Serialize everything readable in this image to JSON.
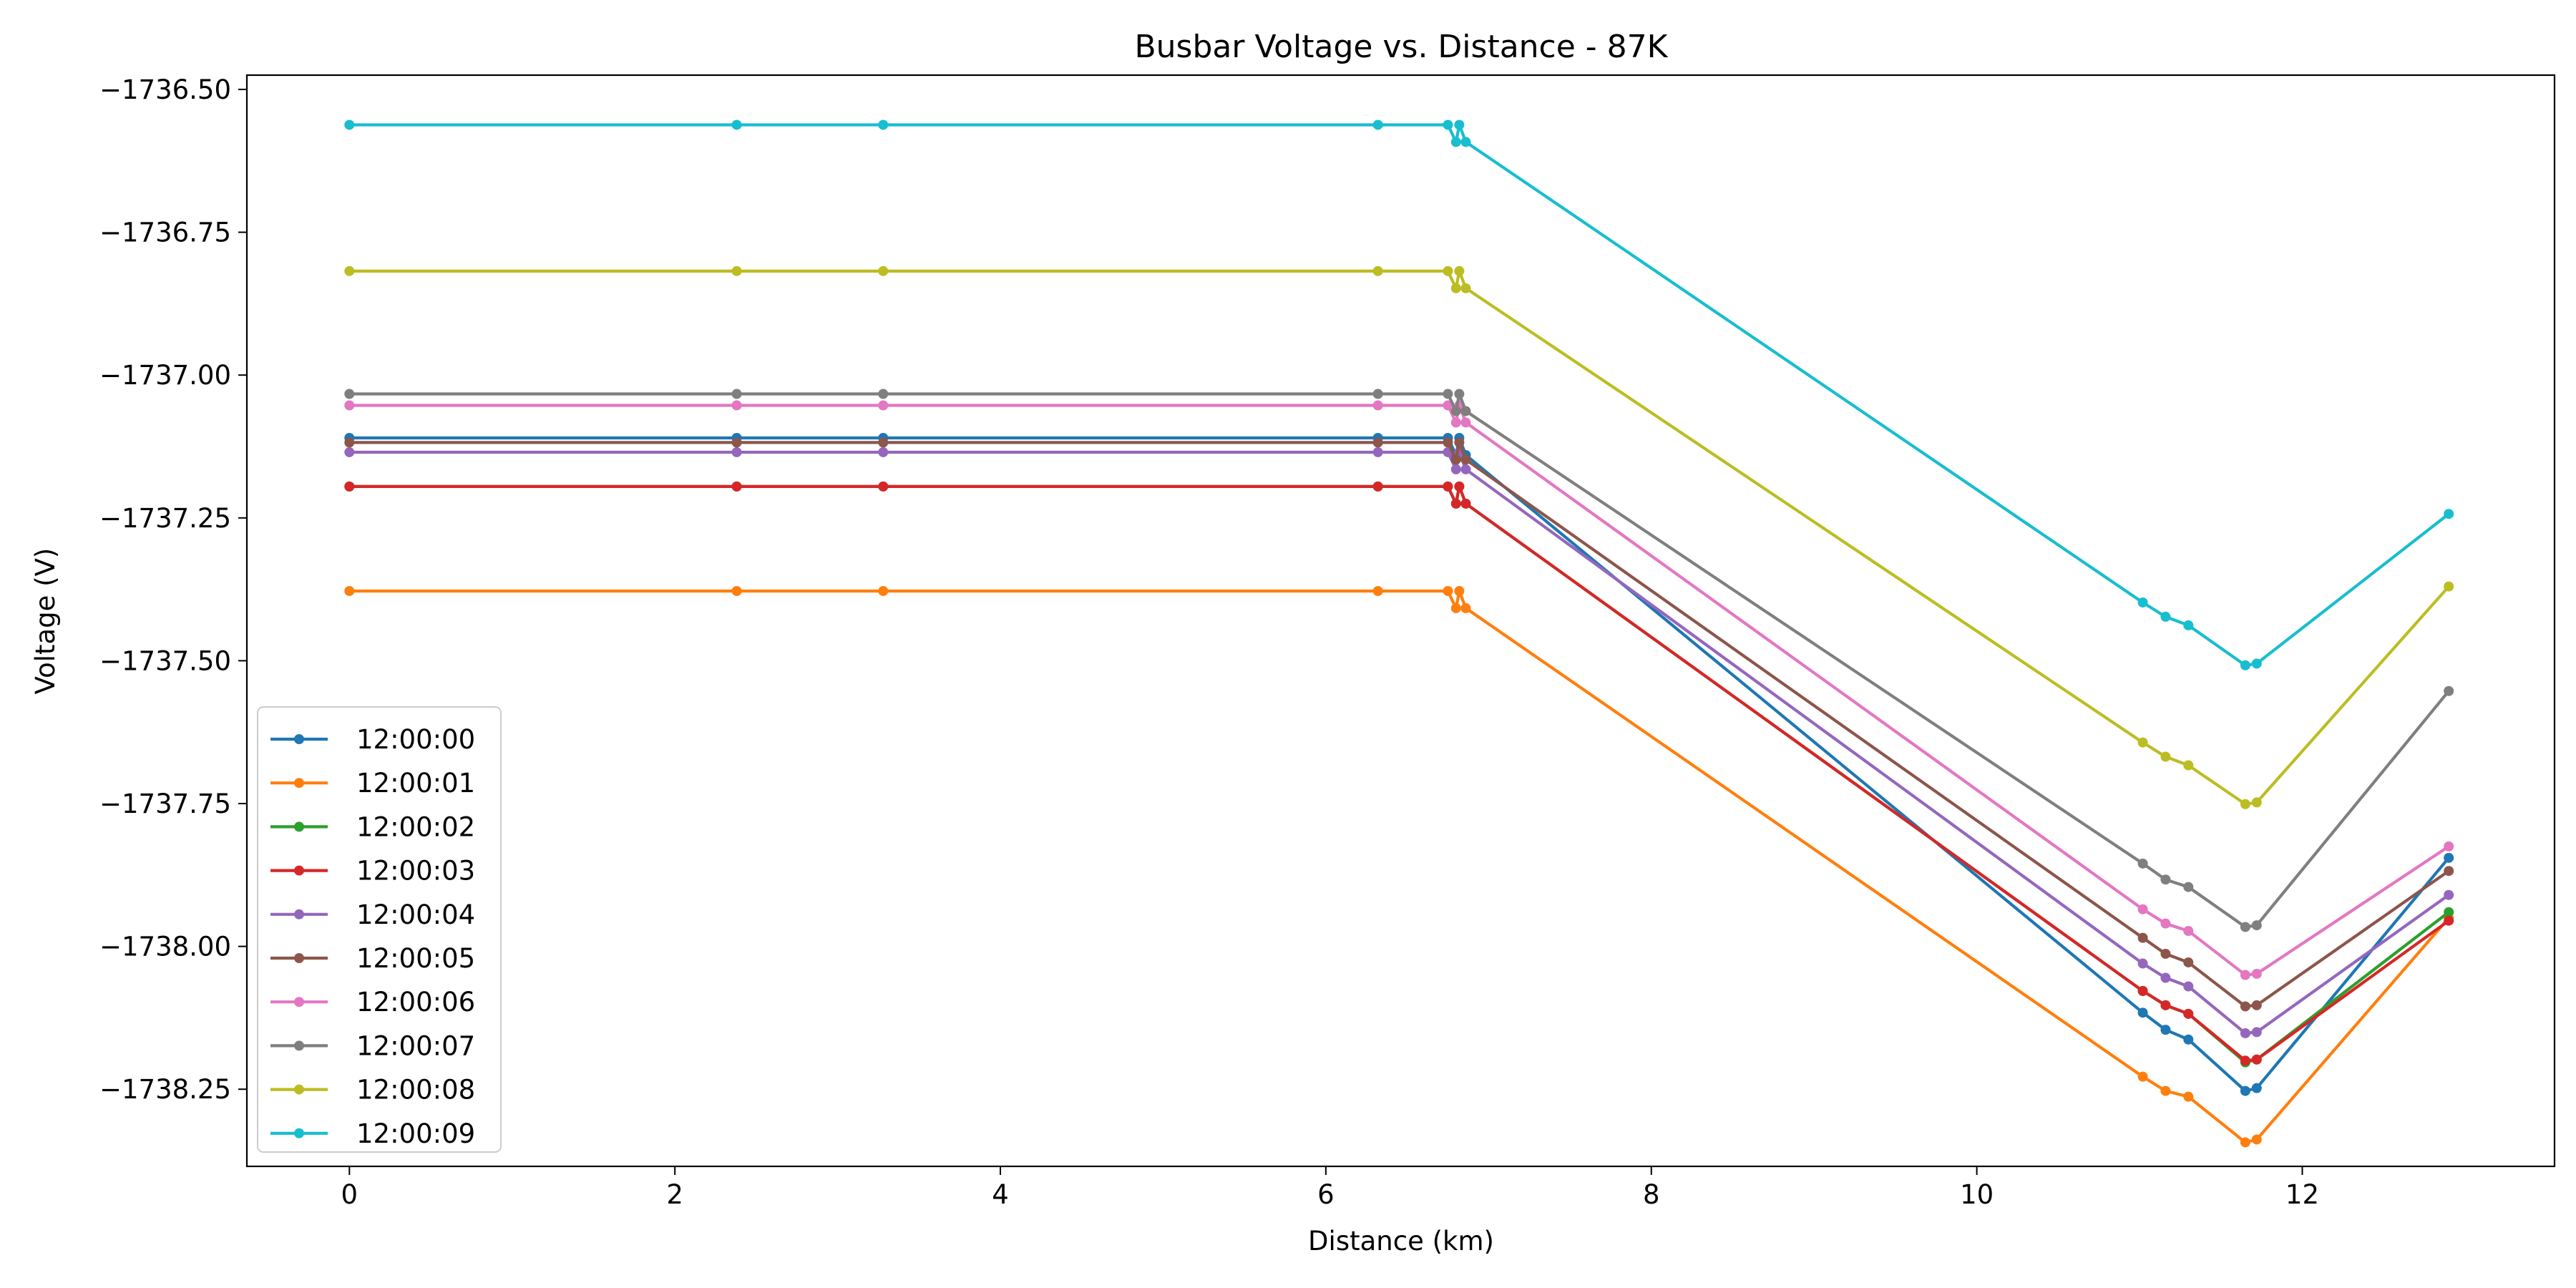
{
  "chart_data": {
    "type": "line",
    "title": "Busbar Voltage vs. Distance - 87K",
    "xlabel": "Distance (km)",
    "ylabel": "Voltage (V)",
    "xlim": [
      -0.63,
      13.55
    ],
    "ylim": [
      -1738.385,
      -1736.475
    ],
    "x_ticks": [
      0,
      2,
      4,
      6,
      8,
      10,
      12
    ],
    "x_tick_labels": [
      "0",
      "2",
      "4",
      "6",
      "8",
      "10",
      "12"
    ],
    "y_ticks": [
      -1736.5,
      -1736.75,
      -1737.0,
      -1737.25,
      -1737.5,
      -1737.75,
      -1738.0,
      -1738.25
    ],
    "y_tick_labels": [
      "−1736.50",
      "−1736.75",
      "−1737.00",
      "−1737.25",
      "−1737.50",
      "−1737.75",
      "−1738.00",
      "−1738.25"
    ],
    "grid": false,
    "legend_position": "lower-left",
    "x": [
      0,
      2.38,
      3.28,
      6.32,
      6.75,
      6.8,
      6.82,
      6.86,
      11.02,
      11.16,
      11.3,
      11.65,
      11.72,
      12.9
    ],
    "series": [
      {
        "name": "12:00:00",
        "color": "#1f77b4",
        "values": [
          -1737.11,
          -1737.11,
          -1737.11,
          -1737.11,
          -1737.11,
          -1737.14,
          -1737.11,
          -1737.14,
          -1738.116,
          -1738.146,
          -1738.163,
          -1738.253,
          -1738.248,
          -1737.845
        ]
      },
      {
        "name": "12:00:01",
        "color": "#ff7f0e",
        "values": [
          -1737.378,
          -1737.378,
          -1737.378,
          -1737.378,
          -1737.378,
          -1737.408,
          -1737.378,
          -1737.408,
          -1738.228,
          -1738.253,
          -1738.263,
          -1738.343,
          -1738.338,
          -1737.95
        ]
      },
      {
        "name": "12:00:02",
        "color": "#2ca02c",
        "values": [
          -1737.195,
          -1737.195,
          -1737.195,
          -1737.195,
          -1737.195,
          -1737.225,
          -1737.195,
          -1737.225,
          -1738.078,
          -1738.103,
          -1738.118,
          -1738.203,
          -1738.198,
          -1737.94
        ]
      },
      {
        "name": "12:00:03",
        "color": "#d62728",
        "values": [
          -1737.195,
          -1737.195,
          -1737.195,
          -1737.195,
          -1737.195,
          -1737.225,
          -1737.195,
          -1737.225,
          -1738.078,
          -1738.103,
          -1738.118,
          -1738.2,
          -1738.198,
          -1737.955
        ]
      },
      {
        "name": "12:00:04",
        "color": "#9467bd",
        "values": [
          -1737.135,
          -1737.135,
          -1737.135,
          -1737.135,
          -1737.135,
          -1737.165,
          -1737.135,
          -1737.165,
          -1738.03,
          -1738.055,
          -1738.07,
          -1738.152,
          -1738.15,
          -1737.91
        ]
      },
      {
        "name": "12:00:05",
        "color": "#8c564b",
        "values": [
          -1737.118,
          -1737.118,
          -1737.118,
          -1737.118,
          -1737.118,
          -1737.148,
          -1737.118,
          -1737.148,
          -1737.985,
          -1738.013,
          -1738.028,
          -1738.105,
          -1738.103,
          -1737.868
        ]
      },
      {
        "name": "12:00:06",
        "color": "#e377c2",
        "values": [
          -1737.053,
          -1737.053,
          -1737.053,
          -1737.053,
          -1737.053,
          -1737.083,
          -1737.053,
          -1737.083,
          -1737.935,
          -1737.96,
          -1737.973,
          -1738.05,
          -1738.048,
          -1737.825
        ]
      },
      {
        "name": "12:00:07",
        "color": "#7f7f7f",
        "values": [
          -1737.033,
          -1737.033,
          -1737.033,
          -1737.033,
          -1737.033,
          -1737.063,
          -1737.033,
          -1737.063,
          -1737.855,
          -1737.883,
          -1737.896,
          -1737.966,
          -1737.963,
          -1737.553
        ]
      },
      {
        "name": "12:00:08",
        "color": "#bcbd22",
        "values": [
          -1736.818,
          -1736.818,
          -1736.818,
          -1736.818,
          -1736.818,
          -1736.848,
          -1736.818,
          -1736.848,
          -1737.643,
          -1737.668,
          -1737.683,
          -1737.751,
          -1737.748,
          -1737.37
        ]
      },
      {
        "name": "12:00:09",
        "color": "#17becf",
        "values": [
          -1736.562,
          -1736.562,
          -1736.562,
          -1736.562,
          -1736.562,
          -1736.592,
          -1736.562,
          -1736.592,
          -1737.398,
          -1737.423,
          -1737.438,
          -1737.508,
          -1737.505,
          -1737.243
        ]
      }
    ]
  }
}
